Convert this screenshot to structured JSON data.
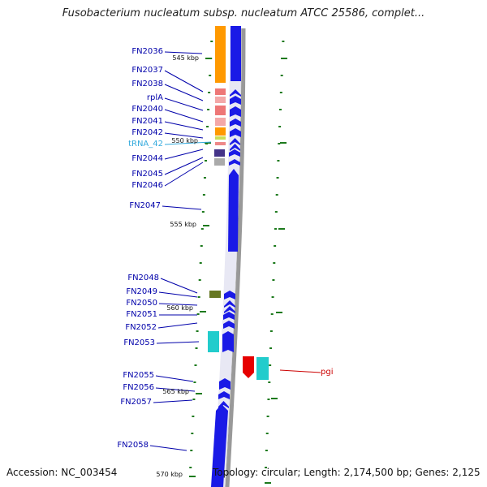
{
  "title": "Fusobacterium nucleatum subsp. nucleatum ATCC 25586, complet...",
  "footer": {
    "accession": "Accession: NC_003454",
    "summary": "Topology: circular; Length: 2,174,500 bp; Genes: 2,125"
  },
  "colors": {
    "cds_forward": "#1a1ae6",
    "cds_reverse": "#e60000",
    "gene_label": "#0000aa",
    "trna_label": "#33aadd",
    "reverse_label": "#cc0000",
    "tick": "#1d7a1d",
    "backbone": "#888888"
  },
  "scale_labels": [
    "545 kbp",
    "550 kbp",
    "555 kbp",
    "560 kbp",
    "565 kbp",
    "570 kbp"
  ],
  "gene_labels": [
    {
      "text": "FN2036",
      "kind": "gene"
    },
    {
      "text": "FN2037",
      "kind": "gene"
    },
    {
      "text": "FN2038",
      "kind": "gene"
    },
    {
      "text": "rplA",
      "kind": "gene"
    },
    {
      "text": "FN2040",
      "kind": "gene"
    },
    {
      "text": "FN2041",
      "kind": "gene"
    },
    {
      "text": "FN2042",
      "kind": "gene"
    },
    {
      "text": "tRNA_42",
      "kind": "trna"
    },
    {
      "text": "FN2044",
      "kind": "gene"
    },
    {
      "text": "FN2045",
      "kind": "gene"
    },
    {
      "text": "FN2046",
      "kind": "gene"
    },
    {
      "text": "FN2047",
      "kind": "gene"
    },
    {
      "text": "FN2048",
      "kind": "gene"
    },
    {
      "text": "FN2049",
      "kind": "gene"
    },
    {
      "text": "FN2050",
      "kind": "gene"
    },
    {
      "text": "FN2051",
      "kind": "gene"
    },
    {
      "text": "FN2052",
      "kind": "gene"
    },
    {
      "text": "FN2053",
      "kind": "gene"
    },
    {
      "text": "FN2055",
      "kind": "gene"
    },
    {
      "text": "FN2056",
      "kind": "gene"
    },
    {
      "text": "FN2057",
      "kind": "gene"
    },
    {
      "text": "FN2058",
      "kind": "gene"
    },
    {
      "text": "pgi",
      "kind": "reverse"
    }
  ]
}
